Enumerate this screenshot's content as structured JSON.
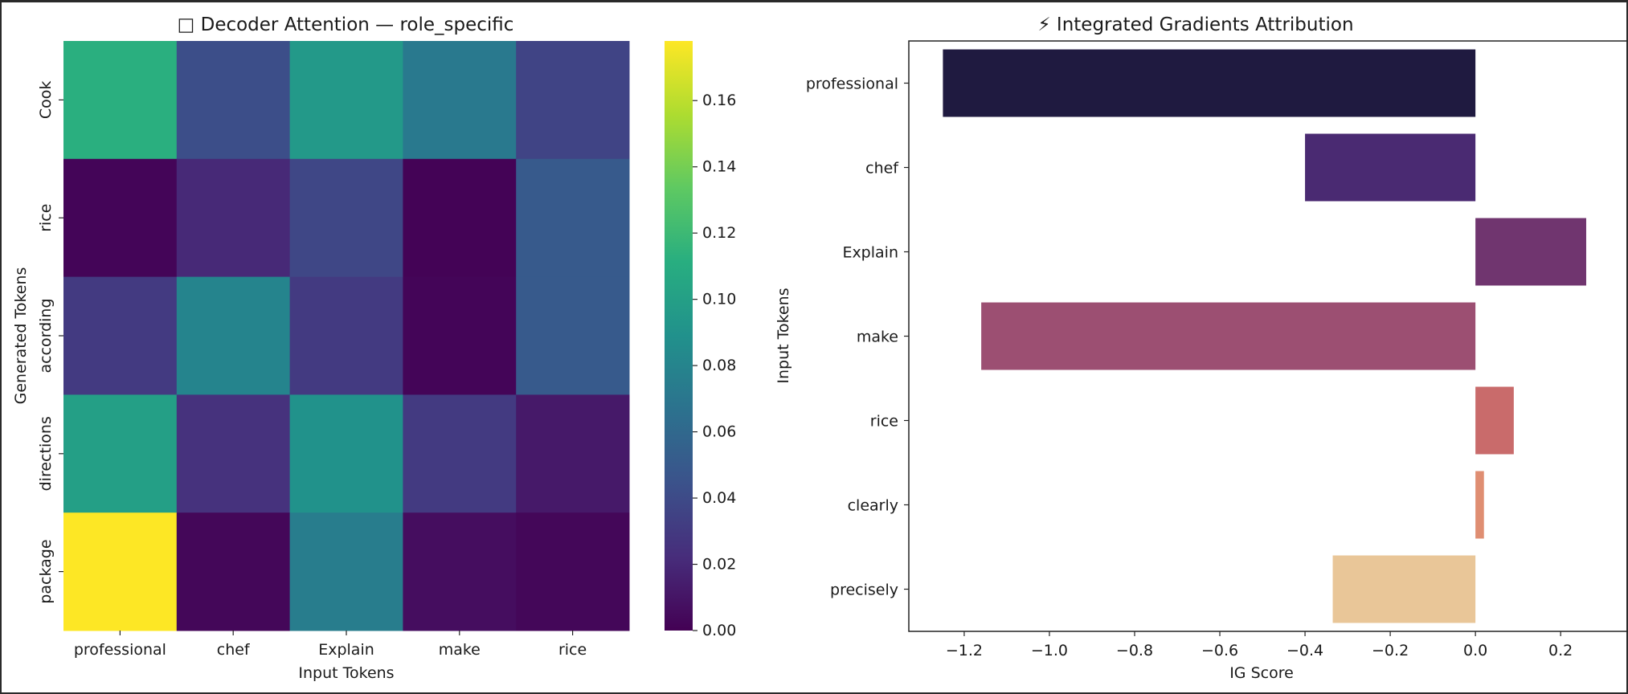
{
  "chart_data": [
    {
      "type": "heatmap",
      "title": "□ Decoder Attention — role_specific",
      "xlabel": "Input Tokens",
      "ylabel": "Generated Tokens",
      "x_categories": [
        "professional",
        "chef",
        "Explain",
        "make",
        "rice"
      ],
      "y_categories": [
        "Cook",
        "rice",
        "according",
        "directions",
        "package"
      ],
      "values": [
        [
          0.112,
          0.042,
          0.095,
          0.072,
          0.036
        ],
        [
          0.002,
          0.02,
          0.038,
          0.001,
          0.05
        ],
        [
          0.03,
          0.08,
          0.03,
          0.002,
          0.05
        ],
        [
          0.1,
          0.025,
          0.09,
          0.03,
          0.012
        ],
        [
          0.178,
          0.003,
          0.075,
          0.006,
          0.003
        ]
      ],
      "colorbar": {
        "range": [
          0.0,
          0.178
        ],
        "ticks": [
          0.0,
          0.02,
          0.04,
          0.06,
          0.08,
          0.1,
          0.12,
          0.14,
          0.16
        ],
        "tick_labels": [
          "0.00",
          "0.02",
          "0.04",
          "0.06",
          "0.08",
          "0.10",
          "0.12",
          "0.14",
          "0.16"
        ]
      },
      "colormap": "viridis"
    },
    {
      "type": "bar",
      "orientation": "horizontal",
      "title": "⚡ Integrated Gradients Attribution",
      "xlabel": "IG Score",
      "ylabel": "Input Tokens",
      "categories": [
        "professional",
        "chef",
        "Explain",
        "make",
        "rice",
        "clearly",
        "precisely"
      ],
      "values": [
        -1.25,
        -0.4,
        0.26,
        -1.16,
        0.09,
        0.02,
        -0.335
      ],
      "colors": [
        "#1f1a40",
        "#4a2a72",
        "#70356f",
        "#9c4f72",
        "#c96b6b",
        "#df8e72",
        "#e9c698"
      ],
      "xlim": [
        -1.33,
        0.36
      ],
      "xticks": [
        -1.2,
        -1.0,
        -0.8,
        -0.6,
        -0.4,
        -0.2,
        0.0,
        0.2
      ],
      "xtick_labels": [
        "−1.2",
        "−1.0",
        "−0.8",
        "−0.6",
        "−0.4",
        "−0.2",
        "0.0",
        "0.2"
      ]
    }
  ]
}
